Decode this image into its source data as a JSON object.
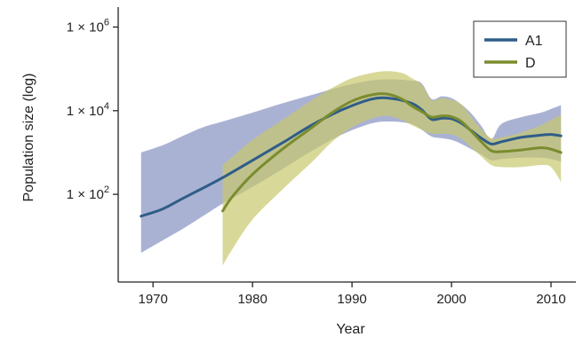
{
  "chart_data": {
    "type": "line",
    "title": "",
    "xlabel": "Year",
    "ylabel": "Population size (log)",
    "y_scale": "log",
    "xlim": [
      1966.5,
      2012.5
    ],
    "ylim": [
      0.8,
      3000000
    ],
    "x_ticks": [
      1970,
      1980,
      1990,
      2000,
      2010
    ],
    "x_tick_labels": [
      "1970",
      "1980",
      "1990",
      "2000",
      "2010"
    ],
    "y_ticks": [
      100,
      10000,
      1000000
    ],
    "y_tick_labels": [
      {
        "base": "1 × 10",
        "exp": "2"
      },
      {
        "base": "1 × 10",
        "exp": "4"
      },
      {
        "base": "1 × 10",
        "exp": "6"
      }
    ],
    "grid": false,
    "legend_position": "top-right",
    "series": [
      {
        "name": "A1",
        "color": "#2e5d88",
        "band_color": "#8e98c6",
        "x": [
          1968.8,
          1971,
          1973,
          1975,
          1977,
          1980,
          1983,
          1986,
          1989,
          1992,
          1994,
          1996,
          1997,
          1998,
          1999,
          2000,
          2001,
          2002,
          2003,
          2004,
          2005,
          2007,
          2009,
          2010,
          2011
        ],
        "median": [
          30,
          45,
          80,
          140,
          250,
          650,
          1700,
          4600,
          10500,
          19000,
          19500,
          15000,
          10500,
          6200,
          6600,
          6400,
          5000,
          3300,
          2200,
          1600,
          1800,
          2300,
          2600,
          2700,
          2500
        ],
        "lower": [
          4,
          8,
          15,
          30,
          60,
          150,
          400,
          1100,
          2700,
          5000,
          5500,
          4800,
          3500,
          2400,
          2200,
          2000,
          1600,
          1200,
          900,
          650,
          700,
          750,
          750,
          700,
          600
        ],
        "upper": [
          1000,
          1500,
          2500,
          4000,
          5500,
          9000,
          15000,
          24000,
          38000,
          53000,
          56000,
          52000,
          45000,
          19000,
          22000,
          20000,
          14000,
          8500,
          4300,
          2100,
          4800,
          7000,
          9000,
          11000,
          13500
        ]
      },
      {
        "name": "D",
        "color": "#7a8c2e",
        "band_color": "#c7c86e",
        "x": [
          1977,
          1978,
          1980,
          1983,
          1986,
          1988,
          1990,
          1992,
          1993.5,
          1995,
          1996,
          1997,
          1998,
          1999,
          2000,
          2001,
          2002,
          2003,
          2004,
          2005,
          2007,
          2009,
          2010,
          2011
        ],
        "median": [
          40,
          90,
          300,
          1200,
          4000,
          9000,
          17000,
          24000,
          25000,
          19000,
          13000,
          9500,
          7000,
          7500,
          7200,
          5500,
          3200,
          1800,
          1100,
          1050,
          1150,
          1300,
          1200,
          1000
        ],
        "lower": [
          2,
          5,
          25,
          130,
          600,
          1800,
          4000,
          6500,
          7500,
          6000,
          4500,
          3500,
          2800,
          2800,
          2700,
          2100,
          1300,
          800,
          500,
          450,
          450,
          500,
          450,
          200
        ],
        "upper": [
          500,
          800,
          2000,
          6000,
          18000,
          35000,
          60000,
          80000,
          88000,
          80000,
          60000,
          42000,
          18000,
          20000,
          18000,
          14000,
          7000,
          3600,
          2200,
          2300,
          3000,
          4500,
          6000,
          8000
        ]
      }
    ]
  }
}
